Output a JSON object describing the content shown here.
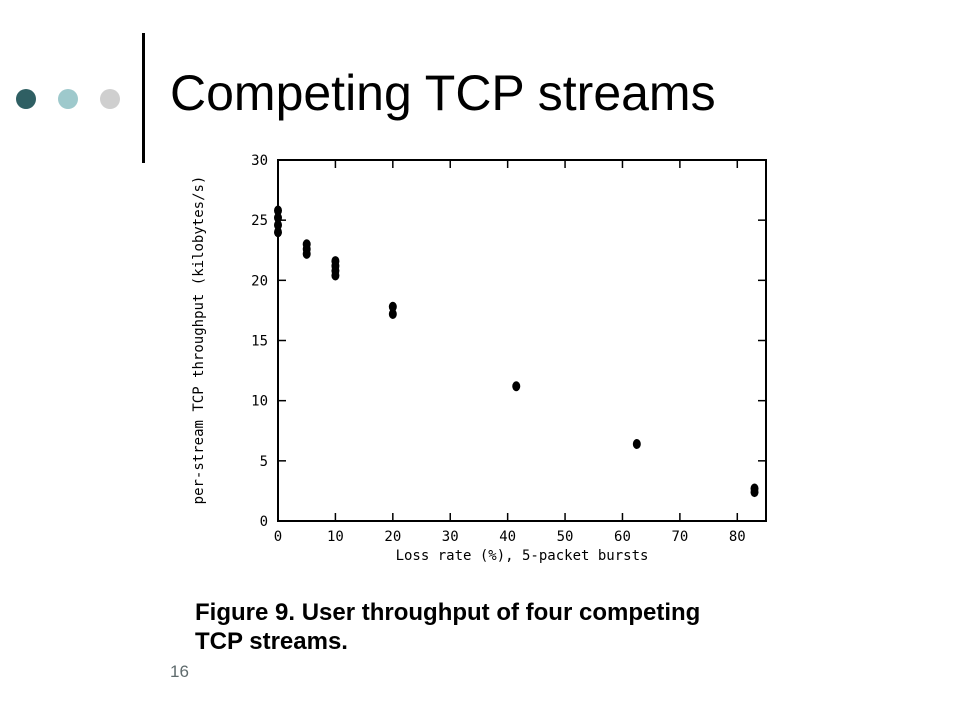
{
  "slide": {
    "title": "Competing TCP streams",
    "page_number": "16",
    "bullets": [
      {
        "name": "bullet-dark",
        "color": "#2f5f63"
      },
      {
        "name": "bullet-teal",
        "color": "#9ec9cc"
      },
      {
        "name": "bullet-grey",
        "color": "#cfcfcf"
      }
    ]
  },
  "figure": {
    "caption": "Figure 9. User throughput of four competing\nTCP streams."
  },
  "chart_data": {
    "type": "scatter",
    "xlabel": "Loss rate (%), 5-packet bursts",
    "ylabel": "per-stream TCP throughput (kilobytes/s)",
    "xlim": [
      0,
      85
    ],
    "ylim": [
      0,
      30
    ],
    "xticks": [
      0,
      10,
      20,
      30,
      40,
      50,
      60,
      70,
      80
    ],
    "yticks": [
      0,
      5,
      10,
      15,
      20,
      25,
      30
    ],
    "grid": false,
    "points": [
      {
        "x": 0,
        "y": 25.8
      },
      {
        "x": 0,
        "y": 25.2
      },
      {
        "x": 0,
        "y": 24.6
      },
      {
        "x": 0,
        "y": 24.0
      },
      {
        "x": 5,
        "y": 23.0
      },
      {
        "x": 5,
        "y": 22.6
      },
      {
        "x": 5,
        "y": 22.2
      },
      {
        "x": 10,
        "y": 21.6
      },
      {
        "x": 10,
        "y": 21.2
      },
      {
        "x": 10,
        "y": 20.8
      },
      {
        "x": 10,
        "y": 20.4
      },
      {
        "x": 20,
        "y": 17.8
      },
      {
        "x": 20,
        "y": 17.2
      },
      {
        "x": 41.5,
        "y": 11.2
      },
      {
        "x": 62.5,
        "y": 6.4
      },
      {
        "x": 83,
        "y": 2.7
      },
      {
        "x": 83,
        "y": 2.4
      }
    ]
  }
}
